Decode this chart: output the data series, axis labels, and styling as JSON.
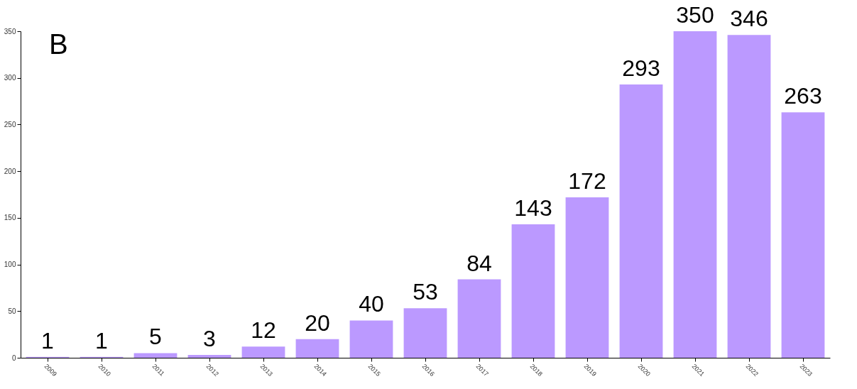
{
  "chart_data": {
    "type": "bar",
    "categories": [
      "2009",
      "2010",
      "2011",
      "2012",
      "2013",
      "2014",
      "2015",
      "2016",
      "2017",
      "2018",
      "2019",
      "2020",
      "2021",
      "2022",
      "2023"
    ],
    "values": [
      1,
      1,
      5,
      3,
      12,
      20,
      40,
      53,
      84,
      143,
      172,
      293,
      350,
      346,
      263
    ],
    "color": "#bb99ff",
    "ylim": [
      0,
      350
    ],
    "yticks": [
      0,
      50,
      100,
      150,
      200,
      250,
      300,
      350
    ],
    "grid": false,
    "data_labels": true,
    "annotations": [
      "B"
    ]
  }
}
